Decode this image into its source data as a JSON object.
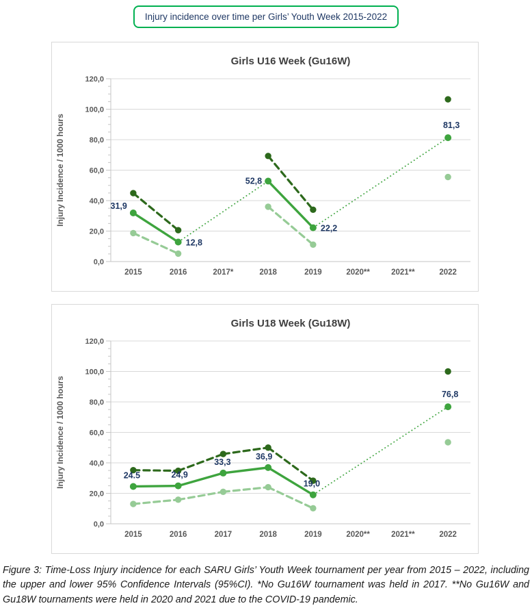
{
  "header": {
    "title": "Injury incidence over time per Girls’ Youth Week 2015-2022",
    "border_color": "#00B050",
    "text_color": "#1F3864"
  },
  "caption": {
    "text": "Figure 3: Time-Loss Injury incidence for each SARU Girls’ Youth Week tournament per year from 2015 – 2022, including the upper and lower 95% Confidence Intervals (95%CI). *No Gu16W tournament was held in 2017. **No Gu16W and Gu18W tournaments were held in 2020 and 2021 due to the COVID-19 pandemic."
  },
  "chart_data": [
    {
      "type": "line",
      "title": "Girls U16 Week (Gu16W)",
      "ylabel": "Injury Incidence / 1000 hours",
      "xlabel": "",
      "ylim": [
        0,
        120
      ],
      "ytick_step": 20,
      "ytick_minor_step": 5,
      "ytick_labels": [
        "0,0",
        "20,0",
        "40,0",
        "60,0",
        "80,0",
        "100,0",
        "120,0"
      ],
      "categories": [
        "2015",
        "2016",
        "2017*",
        "2018",
        "2019",
        "2020**",
        "2021**",
        "2022"
      ],
      "grid": true,
      "legend": "none",
      "colors": {
        "grid": "#D9D9D9",
        "axis": "#C6C6C6"
      },
      "series": [
        {
          "name": "Upper 95%CI",
          "color": "#2D691C",
          "dash": true,
          "values": [
            44.9,
            20.6,
            null,
            69.3,
            34.0,
            null,
            null,
            106.5
          ]
        },
        {
          "name": "Lower 95%CI",
          "color": "#96CB96",
          "dash": true,
          "values": [
            18.7,
            5.2,
            null,
            36.0,
            11.1,
            null,
            null,
            55.5
          ]
        },
        {
          "name": "Injury incidence",
          "color": "#3EA43E",
          "dash": false,
          "values": [
            31.9,
            12.8,
            null,
            52.8,
            22.2,
            null,
            null,
            81.3
          ],
          "connectors": [
            [
              1,
              3
            ],
            [
              4,
              7
            ]
          ],
          "point_labels": [
            {
              "index": 0,
              "text": "31,9",
              "anchor": "end",
              "dx": -9,
              "dy": -6
            },
            {
              "index": 1,
              "text": "12,8",
              "anchor": "start",
              "dx": 11,
              "dy": 5
            },
            {
              "index": 3,
              "text": "52,8",
              "anchor": "end",
              "dx": -9,
              "dy": 4
            },
            {
              "index": 4,
              "text": "22,2",
              "anchor": "start",
              "dx": 11,
              "dy": 5
            },
            {
              "index": 7,
              "text": "81,3",
              "anchor": "middle",
              "dx": 5,
              "dy": -14
            }
          ]
        }
      ]
    },
    {
      "type": "line",
      "title": "Girls U18 Week (Gu18W)",
      "ylabel": "Injury Incidence / 1000 hours",
      "xlabel": "",
      "ylim": [
        0,
        120
      ],
      "ytick_step": 20,
      "ytick_minor_step": 5,
      "ytick_labels": [
        "0,0",
        "20,0",
        "40,0",
        "60,0",
        "80,0",
        "100,0",
        "120,0"
      ],
      "categories": [
        "2015",
        "2016",
        "2017",
        "2018",
        "2019",
        "2020**",
        "2021**",
        "2022"
      ],
      "grid": true,
      "legend": "none",
      "colors": {
        "grid": "#D9D9D9",
        "axis": "#C6C6C6"
      },
      "series": [
        {
          "name": "Upper 95%CI",
          "color": "#2D691C",
          "dash": true,
          "values": [
            35.2,
            34.8,
            45.8,
            50.0,
            28.3,
            null,
            null,
            100.0
          ]
        },
        {
          "name": "Lower 95%CI",
          "color": "#96CB96",
          "dash": true,
          "values": [
            13.0,
            15.8,
            21.0,
            24.0,
            10.2,
            null,
            null,
            53.5
          ]
        },
        {
          "name": "Injury incidence",
          "color": "#3EA43E",
          "dash": false,
          "values": [
            24.5,
            24.9,
            33.3,
            36.9,
            19.0,
            null,
            null,
            76.8
          ],
          "connectors": [
            [
              4,
              7
            ]
          ],
          "point_labels": [
            {
              "index": 0,
              "text": "24.5",
              "anchor": "middle",
              "dx": -2,
              "dy": -12
            },
            {
              "index": 1,
              "text": "24,9",
              "anchor": "middle",
              "dx": 2,
              "dy": -12
            },
            {
              "index": 2,
              "text": "33,3",
              "anchor": "middle",
              "dx": -1,
              "dy": -12
            },
            {
              "index": 3,
              "text": "36,9",
              "anchor": "middle",
              "dx": -6,
              "dy": -12
            },
            {
              "index": 4,
              "text": "19,0",
              "anchor": "middle",
              "dx": -2,
              "dy": -12
            },
            {
              "index": 7,
              "text": "76,8",
              "anchor": "middle",
              "dx": 3,
              "dy": -14
            }
          ]
        }
      ]
    }
  ]
}
